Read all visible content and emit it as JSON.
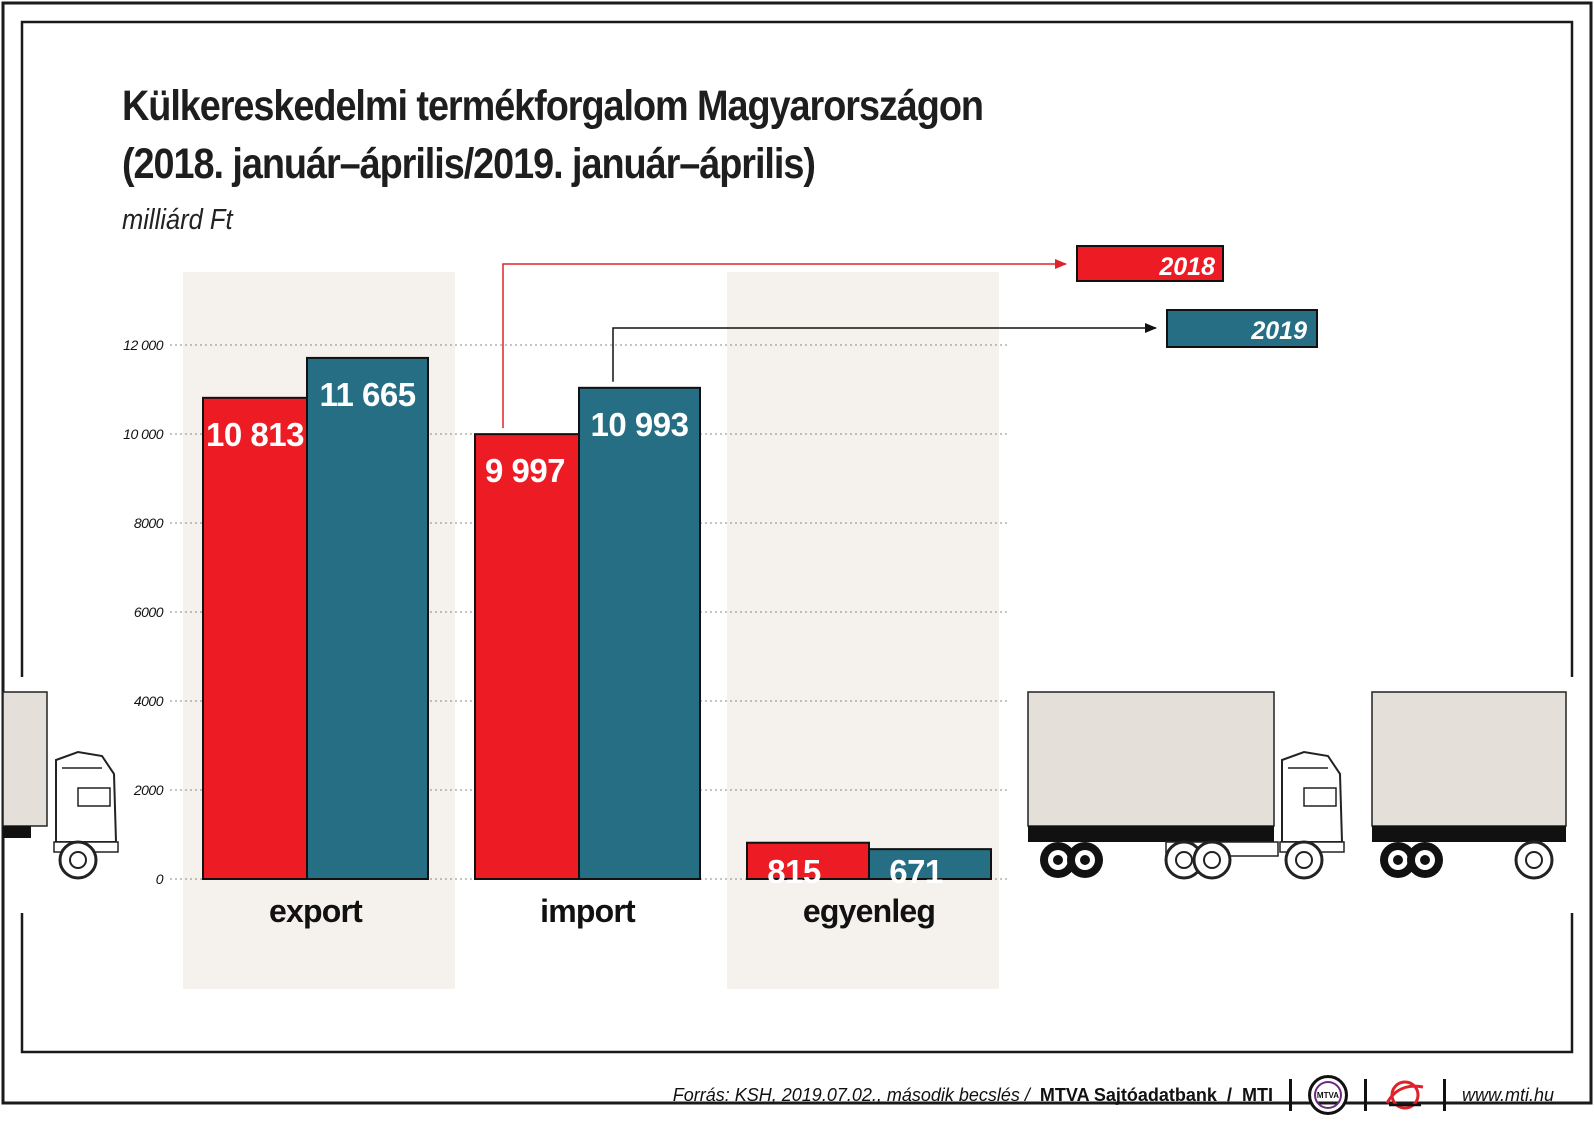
{
  "chart_data": {
    "type": "bar",
    "title": "Külkereskedelmi termékforgalom Magyarországon",
    "subtitle": "(2018. január–április/2019. január–április)",
    "unit": "milliárd Ft",
    "categories": [
      "export",
      "import",
      "egyenleg"
    ],
    "series": [
      {
        "name": "2018",
        "values": [
          10813,
          9997,
          815
        ],
        "labels": [
          "10 813",
          "9 997",
          "815"
        ],
        "color": "#ed1c24"
      },
      {
        "name": "2019",
        "values": [
          11665,
          10993,
          671
        ],
        "labels": [
          "11 665",
          "10 993",
          "671"
        ],
        "color": "#266e83"
      }
    ],
    "ylim": [
      0,
      12000
    ],
    "yticks": [
      0,
      2000,
      4000,
      6000,
      8000,
      10000,
      12000
    ],
    "ytick_labels": [
      "0",
      "2000",
      "4000",
      "6000",
      "8000",
      "10 000",
      "12 000"
    ],
    "grid": true,
    "legend_position": "top-right"
  },
  "footer": {
    "source": "Forrás: KSH, 2019.07.02., második becslés /",
    "bank": "MTVA Sajtóadatbank",
    "slash": "/",
    "agency": "MTI",
    "logo_text": "MTVA",
    "url": "www.mti.hu"
  },
  "colors": {
    "band": "#f5f1ed",
    "trailer": "#e4dfd9",
    "frame": "#1a1a1a"
  }
}
